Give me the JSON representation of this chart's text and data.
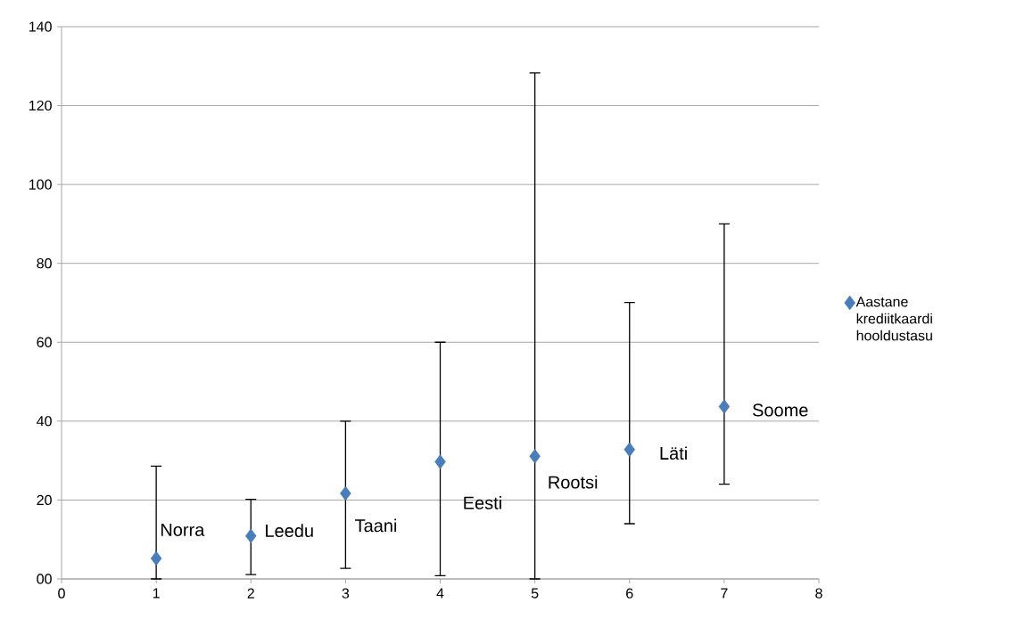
{
  "chart_data": {
    "type": "scatter",
    "x": [
      1,
      2,
      3,
      4,
      5,
      6,
      7
    ],
    "series": [
      {
        "name": "Aastane krediitkaardi hooldustasu",
        "color": "#4a7ebb",
        "values": [
          5.2,
          10.9,
          21.7,
          29.7,
          31.1,
          32.8,
          43.7
        ],
        "errors": [
          [
            0,
            28.6
          ],
          [
            1.1,
            20.2
          ],
          [
            2.7,
            40
          ],
          [
            0.8,
            60
          ],
          [
            0,
            128.3
          ],
          [
            14,
            70.1
          ],
          [
            24,
            90
          ]
        ]
      }
    ],
    "xlim": [
      0,
      8
    ],
    "ylim": [
      0,
      140
    ],
    "xticks": [
      0,
      1,
      2,
      3,
      4,
      5,
      6,
      7,
      8
    ],
    "yticks": [
      {
        "value": 0,
        "label": "00"
      },
      20,
      40,
      60,
      80,
      100,
      120,
      140
    ],
    "grid": "y",
    "marker": "diamond",
    "legend": "right",
    "annotations": [
      "Norra",
      "Leedu",
      "Taani",
      "Eesti",
      "Rootsi",
      "Läti",
      "Soome"
    ]
  }
}
